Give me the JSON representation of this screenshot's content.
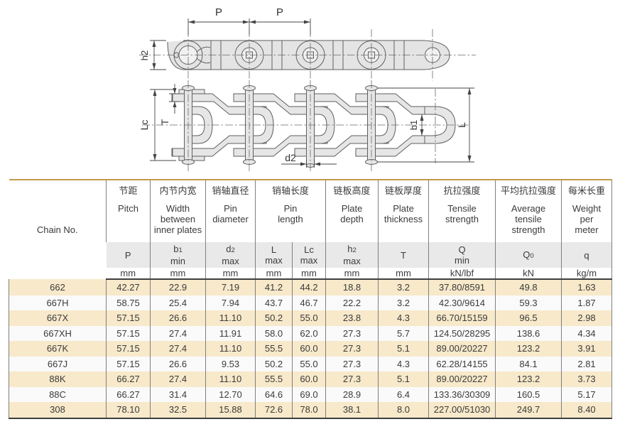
{
  "drawing": {
    "labels": {
      "p": "P",
      "h2": "h2",
      "lc": "Lc",
      "t": "T",
      "b1": "b1",
      "l": "L",
      "d2": "d2"
    }
  },
  "table": {
    "chain_no_label": "Chain No.",
    "header": {
      "groups": [
        {
          "cn": "节距",
          "en": "Pitch"
        },
        {
          "cn": "内节内宽",
          "en": "Width\nbetween\ninner plates"
        },
        {
          "cn": "销轴直径",
          "en": "Pin\ndiameter"
        },
        {
          "cn": "销轴长度",
          "en": "Pin\nlength"
        },
        {
          "cn": "链板高度",
          "en": "Plate\ndepth"
        },
        {
          "cn": "链板厚度",
          "en": "Plate\nthickness"
        },
        {
          "cn": "抗拉强度",
          "en": "Tensile\nstrength"
        },
        {
          "cn": "平均抗拉强度",
          "en": "Average\ntensile\nstrength"
        },
        {
          "cn": "每米长重",
          "en": "Weight\nper\nmeter"
        }
      ],
      "symbols": [
        "P",
        "b~1~\nmin",
        "d~2~\nmax",
        "L\nmax",
        "Lc\nmax",
        "h~2~\nmax",
        "T",
        "Q\nmin",
        "Q~0~",
        "q"
      ],
      "units": [
        "mm",
        "mm",
        "mm",
        "mm",
        "mm",
        "mm",
        "mm",
        "kN/lbf",
        "kN",
        "kg/m"
      ]
    },
    "rows": [
      [
        "662",
        "42.27",
        "22.9",
        "7.19",
        "41.2",
        "44.2",
        "18.8",
        "3.2",
        "37.80/8591",
        "49.8",
        "1.63"
      ],
      [
        "667H",
        "58.75",
        "25.4",
        "7.94",
        "43.7",
        "46.7",
        "22.2",
        "3.2",
        "42.30/9614",
        "59.3",
        "1.87"
      ],
      [
        "667X",
        "57.15",
        "26.6",
        "11.10",
        "50.2",
        "55.0",
        "23.8",
        "4.3",
        "66.70/15159",
        "96.5",
        "2.98"
      ],
      [
        "667XH",
        "57.15",
        "27.4",
        "11.91",
        "58.0",
        "62.0",
        "27.3",
        "5.7",
        "124.50/28295",
        "138.6",
        "4.34"
      ],
      [
        "667K",
        "57.15",
        "27.4",
        "11.10",
        "55.5",
        "60.0",
        "27.3",
        "5.1",
        "89.00/20227",
        "123.2",
        "3.91"
      ],
      [
        "667J",
        "57.15",
        "26.6",
        "9.53",
        "50.2",
        "55.0",
        "27.3",
        "4.3",
        "62.28/14155",
        "84.1",
        "2.81"
      ],
      [
        "88K",
        "66.27",
        "27.4",
        "11.10",
        "55.5",
        "60.0",
        "27.3",
        "5.1",
        "89.00/20227",
        "123.2",
        "3.73"
      ],
      [
        "88C",
        "66.27",
        "31.4",
        "12.70",
        "64.6",
        "69.0",
        "28.9",
        "6.4",
        "133.36/30309",
        "160.5",
        "5.17"
      ],
      [
        "308",
        "78.10",
        "32.5",
        "15.88",
        "72.6",
        "78.0",
        "38.1",
        "8.0",
        "227.00/51030",
        "249.7",
        "8.40"
      ]
    ]
  },
  "colors": {
    "accent_gold": "#c19a4b",
    "row_beige": "#f7e9ca",
    "row_alt": "#fafafa",
    "symbol_band_gray": "#e9e9e9",
    "drawing_fill": "#e4e4e4",
    "line_dark": "#3f3f3f"
  }
}
